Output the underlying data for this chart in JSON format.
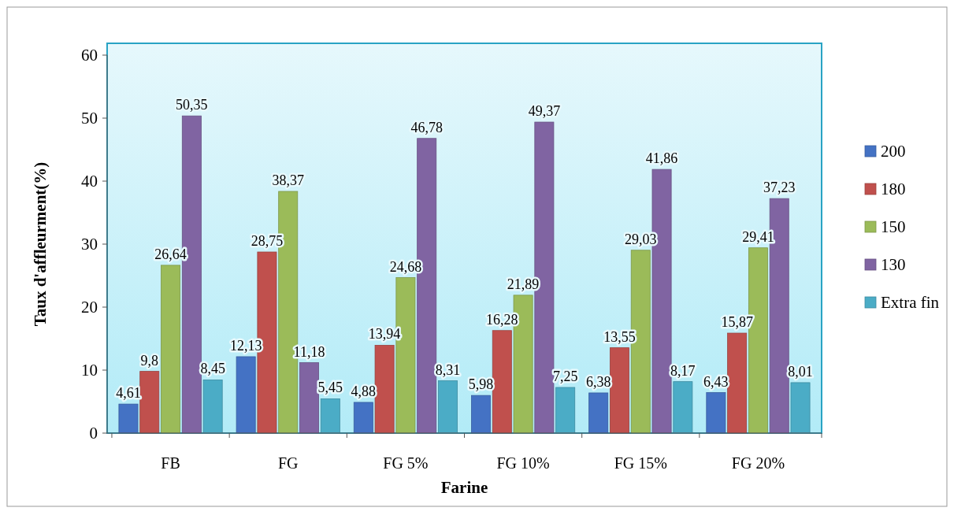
{
  "chart_data": {
    "type": "bar",
    "xlabel": "Farine",
    "ylabel": "Taux d'affleurment(%)",
    "categories": [
      "FB",
      "FG",
      "FG 5%",
      "FG 10%",
      "FG 15%",
      "FG 20%"
    ],
    "series": [
      {
        "name": "200",
        "color": "#4472c4",
        "values": [
          4.61,
          12.13,
          4.88,
          5.98,
          6.38,
          6.43
        ],
        "value_labels": [
          "4,61",
          "12,13",
          "4,88",
          "5,98",
          "6,38",
          "6,43"
        ]
      },
      {
        "name": "180",
        "color": "#c0504d",
        "values": [
          9.8,
          28.75,
          13.94,
          16.28,
          13.55,
          15.87
        ],
        "value_labels": [
          "9,8",
          "28,75",
          "13,94",
          "16,28",
          "13,55",
          "15,87"
        ]
      },
      {
        "name": "150",
        "color": "#9bbb59",
        "values": [
          26.64,
          38.37,
          24.68,
          21.89,
          29.03,
          29.41
        ],
        "value_labels": [
          "26,64",
          "38,37",
          "24,68",
          "21,89",
          "29,03",
          "29,41"
        ]
      },
      {
        "name": "130",
        "color": "#8064a2",
        "values": [
          50.35,
          11.18,
          46.78,
          49.37,
          41.86,
          37.23
        ],
        "value_labels": [
          "50,35",
          "11,18",
          "46,78",
          "49,37",
          "41,86",
          "37,23"
        ]
      },
      {
        "name": "Extra fin",
        "color": "#4bacc6",
        "values": [
          8.45,
          5.45,
          8.31,
          7.25,
          8.17,
          8.01
        ],
        "value_labels": [
          "8,45",
          "5,45",
          "8,31",
          "7,25",
          "8,17",
          "8,01"
        ]
      }
    ],
    "ylim": [
      0,
      60
    ],
    "yticks": [
      0,
      10,
      20,
      30,
      40,
      50,
      60
    ],
    "grid": false,
    "legend": "right"
  }
}
